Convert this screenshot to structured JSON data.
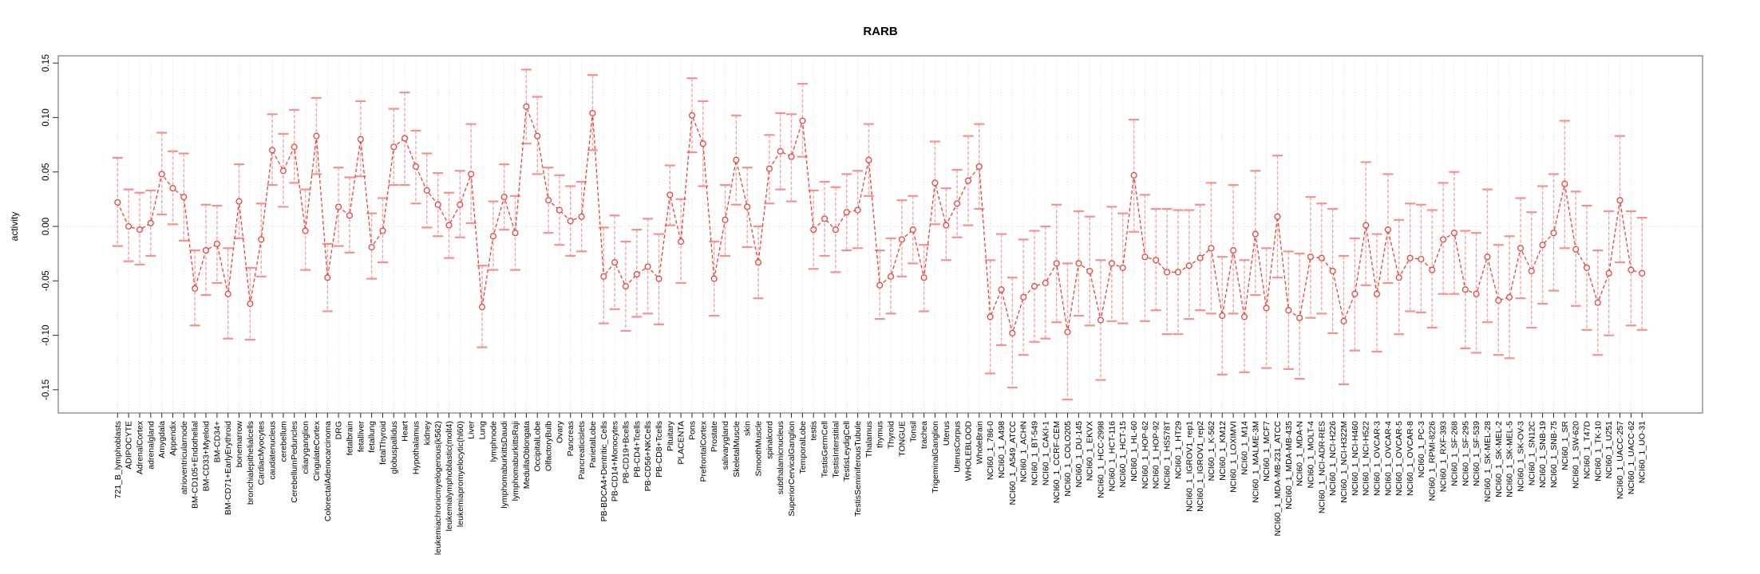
{
  "page": {
    "title": "RARB"
  },
  "chart_data": {
    "type": "line",
    "subtype": "points-with-error-bars",
    "title": "RARB",
    "xlabel": "",
    "ylabel": "activity",
    "ylim": [
      -0.17,
      0.16
    ],
    "yticks": [
      "0.15",
      "0.10",
      "0.05",
      "0.00",
      "-0.05",
      "-0.10",
      "-0.15"
    ],
    "grid": "vertical dotted gridline at every category; horizontal dotted line at 0.00",
    "legend_position": "none",
    "point_color": "#f2423a",
    "line_color": "#f2423a",
    "errorbar_color": "#f7a5a2",
    "categories": [
      "721_B_lymphoblasts",
      "ADIPOCYTE",
      "AdrenalCortex",
      "adrenalgland",
      "Amygdala",
      "Appendix",
      "atrioventricularnode",
      "BM-CD105+Endothelial",
      "BM-CD33+Myeloid",
      "BM-CD34+",
      "BM-CD71+EarlyErythroid",
      "bonemarrow",
      "bronchialepithelialcells",
      "CardiacMyocytes",
      "caudatenucleus",
      "cerebellum",
      "CerebellumPeduncles",
      "ciliaryganglion",
      "CingulateCortex",
      "ColorectalAdenocarcinoma",
      "DRG",
      "fetalbrain",
      "fetalliver",
      "fetallung",
      "fetalThyroid",
      "globuspallidus",
      "Heart",
      "Hypothalamus",
      "kidney",
      "leukemiachronicmyelogenous(k562)",
      "leukemialymphoblastic(molt4)",
      "leukemiapromyelocytic(hl60)",
      "Liver",
      "Lung",
      "lymphnode",
      "lymphomaburkittsDaudi",
      "lymphomaburkittsRaji",
      "MedullaOblongata",
      "OccipitalLobe",
      "OlfactoryBulb",
      "Ovary",
      "Pancreas",
      "Pancreaticislets",
      "ParietalLobe",
      "PB-BDCA4+Dentritic_Cells",
      "PB-CD14+Monocytes",
      "PB-CD19+Bcells",
      "PB-CD4+Tcells",
      "PB-CD56+NKCells",
      "PB-CD8+Tcells",
      "Pituitary",
      "PLACENTA",
      "Pons",
      "PrefrontalCortex",
      "Prostate",
      "salivarygland",
      "SkeletalMuscle",
      "skin",
      "SmoothMuscle",
      "spinalcord",
      "subthalamicnucleus",
      "SuperiorCervicalGanglion",
      "TemporalLobe",
      "testis",
      "TestisGermCell",
      "TestisInterstitial",
      "TestisLeydigCell",
      "TestisSeminiferousTubule",
      "Thalamus",
      "thymus",
      "Thyroid",
      "TONGUE",
      "Tonsil",
      "trachea",
      "TrigeminalGanglion",
      "Uterus",
      "UterusCorpus",
      "WHOLEBLOOD",
      "WholeBrain",
      "NCI60_1_786-0",
      "NCI60_1_A498",
      "NCI60_1_A549_ATCC",
      "NCI60_1_ACHN",
      "NCI60_1_BT-549",
      "NCI60_1_CAKI-1",
      "NCI60_1_CCRF-CEM",
      "NCI60_1_COLO205",
      "NCI60_1_DU-145",
      "NCI60_1_EKVX",
      "NCI60_1_HCC-2998",
      "NCI60_1_HCT-116",
      "NCI60_1_HCT-15",
      "NCI60_1_HL-60",
      "NCI60_1_HOP-62",
      "NCI60_1_HOP-92",
      "NCI60_1_HS578T",
      "NCI60_1_HT29",
      "NCI60_1_IGROV1_rep1",
      "NCI60_1_IGROV1_rep2",
      "NCI60_1_K-562",
      "NCI60_1_KM12",
      "NCI60_1_LOXIMVI",
      "NCI60_1_M14",
      "NCI60_1_MALME-3M",
      "NCI60_1_MCF7",
      "NCI60_1_MDA-MB-231_ATCC",
      "NCI60_1_MDA-MB-435",
      "NCI60_1_MDA-N",
      "NCI60_1_MOLT-4",
      "NCI60_1_NCI-ADR-RES",
      "NCI60_1_NCI-H226",
      "NCI60_1_NCI-H322M",
      "NCI60_1_NCI-H460",
      "NCI60_1_NCI-H522",
      "NCI60_1_OVCAR-3",
      "NCI60_1_OVCAR-4",
      "NCI60_1_OVCAR-5",
      "NCI60_1_OVCAR-8",
      "NCI60_1_PC-3",
      "NCI60_1_RPMI-8226",
      "NCI60_1_RXF-393",
      "NCI60_1_SF-268",
      "NCI60_1_SF-295",
      "NCI60_1_SF-539",
      "NCI60_1_SK-MEL-28",
      "NCI60_1_SK-MEL-2",
      "NCI60_1_SK-MEL-5",
      "NCI60_1_SK-OV-3",
      "NCI60_1_SN12C",
      "NCI60_1_SNB-19",
      "NCI60_1_SNB-75",
      "NCI60_1_SR",
      "NCI60_1_SW-620",
      "NCI60_1_T47D",
      "NCI60_1_TK-10",
      "NCI60_1_U251",
      "NCI60_1_UACC-257",
      "NCI60_1_UACC-62",
      "NCI60_1_UO-31"
    ],
    "series": [
      {
        "name": "activity",
        "values": [
          0.022,
          0.0,
          -0.003,
          0.003,
          0.048,
          0.035,
          0.027,
          -0.057,
          -0.022,
          -0.016,
          -0.062,
          0.023,
          -0.071,
          -0.012,
          0.07,
          0.051,
          0.073,
          -0.004,
          0.083,
          -0.047,
          0.018,
          0.01,
          0.08,
          -0.019,
          -0.004,
          0.073,
          0.081,
          0.055,
          0.033,
          0.02,
          0.001,
          0.02,
          0.048,
          -0.074,
          -0.009,
          0.027,
          -0.006,
          0.11,
          0.083,
          0.024,
          0.015,
          0.005,
          0.009,
          0.104,
          -0.046,
          -0.033,
          -0.055,
          -0.044,
          -0.037,
          -0.048,
          0.029,
          -0.014,
          0.102,
          0.076,
          -0.048,
          0.006,
          0.061,
          0.018,
          -0.033,
          0.053,
          0.069,
          0.064,
          0.097,
          -0.003,
          0.007,
          -0.003,
          0.013,
          0.015,
          0.061,
          -0.054,
          -0.046,
          -0.012,
          -0.003,
          -0.047,
          0.04,
          0.001,
          0.021,
          0.042,
          0.055,
          -0.083,
          -0.058,
          -0.098,
          -0.065,
          -0.055,
          -0.052,
          -0.034,
          -0.097,
          -0.034,
          -0.041,
          -0.086,
          -0.034,
          -0.038,
          0.047,
          -0.028,
          -0.031,
          -0.042,
          -0.042,
          -0.036,
          -0.029,
          -0.02,
          -0.082,
          -0.022,
          -0.083,
          -0.007,
          -0.075,
          0.009,
          -0.077,
          -0.084,
          -0.028,
          -0.029,
          -0.041,
          -0.087,
          -0.062,
          0.001,
          -0.062,
          -0.003,
          -0.047,
          -0.029,
          -0.03,
          -0.04,
          -0.012,
          -0.006,
          -0.058,
          -0.062,
          -0.028,
          -0.068,
          -0.065,
          -0.02,
          -0.041,
          -0.017,
          -0.006,
          0.039,
          -0.021,
          -0.038,
          -0.07,
          -0.043,
          0.024,
          -0.04,
          -0.043
        ],
        "err_low": [
          -0.018,
          -0.032,
          -0.035,
          -0.027,
          0.011,
          0.002,
          -0.013,
          -0.091,
          -0.063,
          -0.052,
          -0.103,
          -0.011,
          -0.104,
          -0.046,
          0.038,
          0.018,
          0.04,
          -0.04,
          0.048,
          -0.078,
          -0.018,
          -0.024,
          0.046,
          -0.048,
          -0.033,
          0.038,
          0.038,
          0.021,
          -0.001,
          -0.009,
          -0.029,
          -0.01,
          0.003,
          -0.111,
          -0.04,
          -0.003,
          -0.04,
          0.076,
          0.048,
          -0.006,
          -0.017,
          -0.027,
          -0.023,
          0.07,
          -0.089,
          -0.076,
          -0.096,
          -0.083,
          -0.08,
          -0.09,
          0.001,
          -0.052,
          0.068,
          0.037,
          -0.082,
          -0.027,
          0.02,
          -0.019,
          -0.066,
          0.021,
          0.034,
          0.023,
          0.064,
          -0.039,
          -0.027,
          -0.042,
          -0.022,
          -0.02,
          0.028,
          -0.085,
          -0.08,
          -0.046,
          -0.034,
          -0.078,
          0.002,
          -0.031,
          -0.01,
          0.001,
          0.016,
          -0.135,
          -0.109,
          -0.148,
          -0.118,
          -0.106,
          -0.103,
          -0.088,
          -0.159,
          -0.082,
          -0.091,
          -0.141,
          -0.087,
          -0.089,
          -0.005,
          -0.087,
          -0.077,
          -0.099,
          -0.099,
          -0.085,
          -0.077,
          -0.08,
          -0.136,
          -0.08,
          -0.134,
          -0.063,
          -0.13,
          -0.047,
          -0.131,
          -0.14,
          -0.084,
          -0.08,
          -0.098,
          -0.145,
          -0.114,
          -0.054,
          -0.115,
          -0.052,
          -0.099,
          -0.078,
          -0.079,
          -0.093,
          -0.062,
          -0.062,
          -0.112,
          -0.116,
          -0.088,
          -0.118,
          -0.121,
          -0.066,
          -0.093,
          -0.071,
          -0.059,
          -0.02,
          -0.073,
          -0.095,
          -0.118,
          -0.1,
          -0.033,
          -0.091,
          -0.095
        ],
        "err_high": [
          0.063,
          0.034,
          0.031,
          0.033,
          0.086,
          0.069,
          0.067,
          -0.022,
          0.02,
          0.019,
          -0.02,
          0.057,
          -0.038,
          0.021,
          0.103,
          0.085,
          0.107,
          0.034,
          0.118,
          -0.016,
          0.054,
          0.045,
          0.115,
          0.012,
          0.026,
          0.108,
          0.123,
          0.088,
          0.067,
          0.049,
          0.031,
          0.051,
          0.094,
          -0.036,
          0.023,
          0.057,
          0.028,
          0.144,
          0.119,
          0.054,
          0.047,
          0.037,
          0.041,
          0.139,
          -0.001,
          0.01,
          -0.014,
          -0.003,
          0.007,
          -0.007,
          0.056,
          0.025,
          0.136,
          0.115,
          -0.014,
          0.038,
          0.102,
          0.054,
          0.0,
          0.084,
          0.104,
          0.103,
          0.131,
          0.033,
          0.041,
          0.036,
          0.048,
          0.051,
          0.094,
          -0.022,
          -0.011,
          0.024,
          0.028,
          -0.017,
          0.078,
          0.035,
          0.052,
          0.083,
          0.094,
          -0.031,
          -0.007,
          -0.047,
          -0.012,
          -0.004,
          0.0,
          0.02,
          -0.034,
          0.014,
          0.009,
          -0.031,
          0.018,
          0.012,
          0.098,
          0.029,
          0.016,
          0.016,
          0.015,
          0.015,
          0.02,
          0.04,
          -0.028,
          0.038,
          -0.031,
          0.051,
          -0.02,
          0.065,
          -0.023,
          -0.025,
          0.027,
          0.021,
          0.016,
          -0.027,
          -0.011,
          0.059,
          -0.007,
          0.048,
          0.006,
          0.021,
          0.02,
          0.015,
          0.04,
          0.05,
          -0.004,
          -0.006,
          0.034,
          -0.017,
          -0.009,
          0.026,
          0.013,
          0.037,
          0.048,
          0.097,
          0.032,
          0.019,
          -0.022,
          0.014,
          0.083,
          0.014,
          0.008
        ]
      }
    ]
  }
}
